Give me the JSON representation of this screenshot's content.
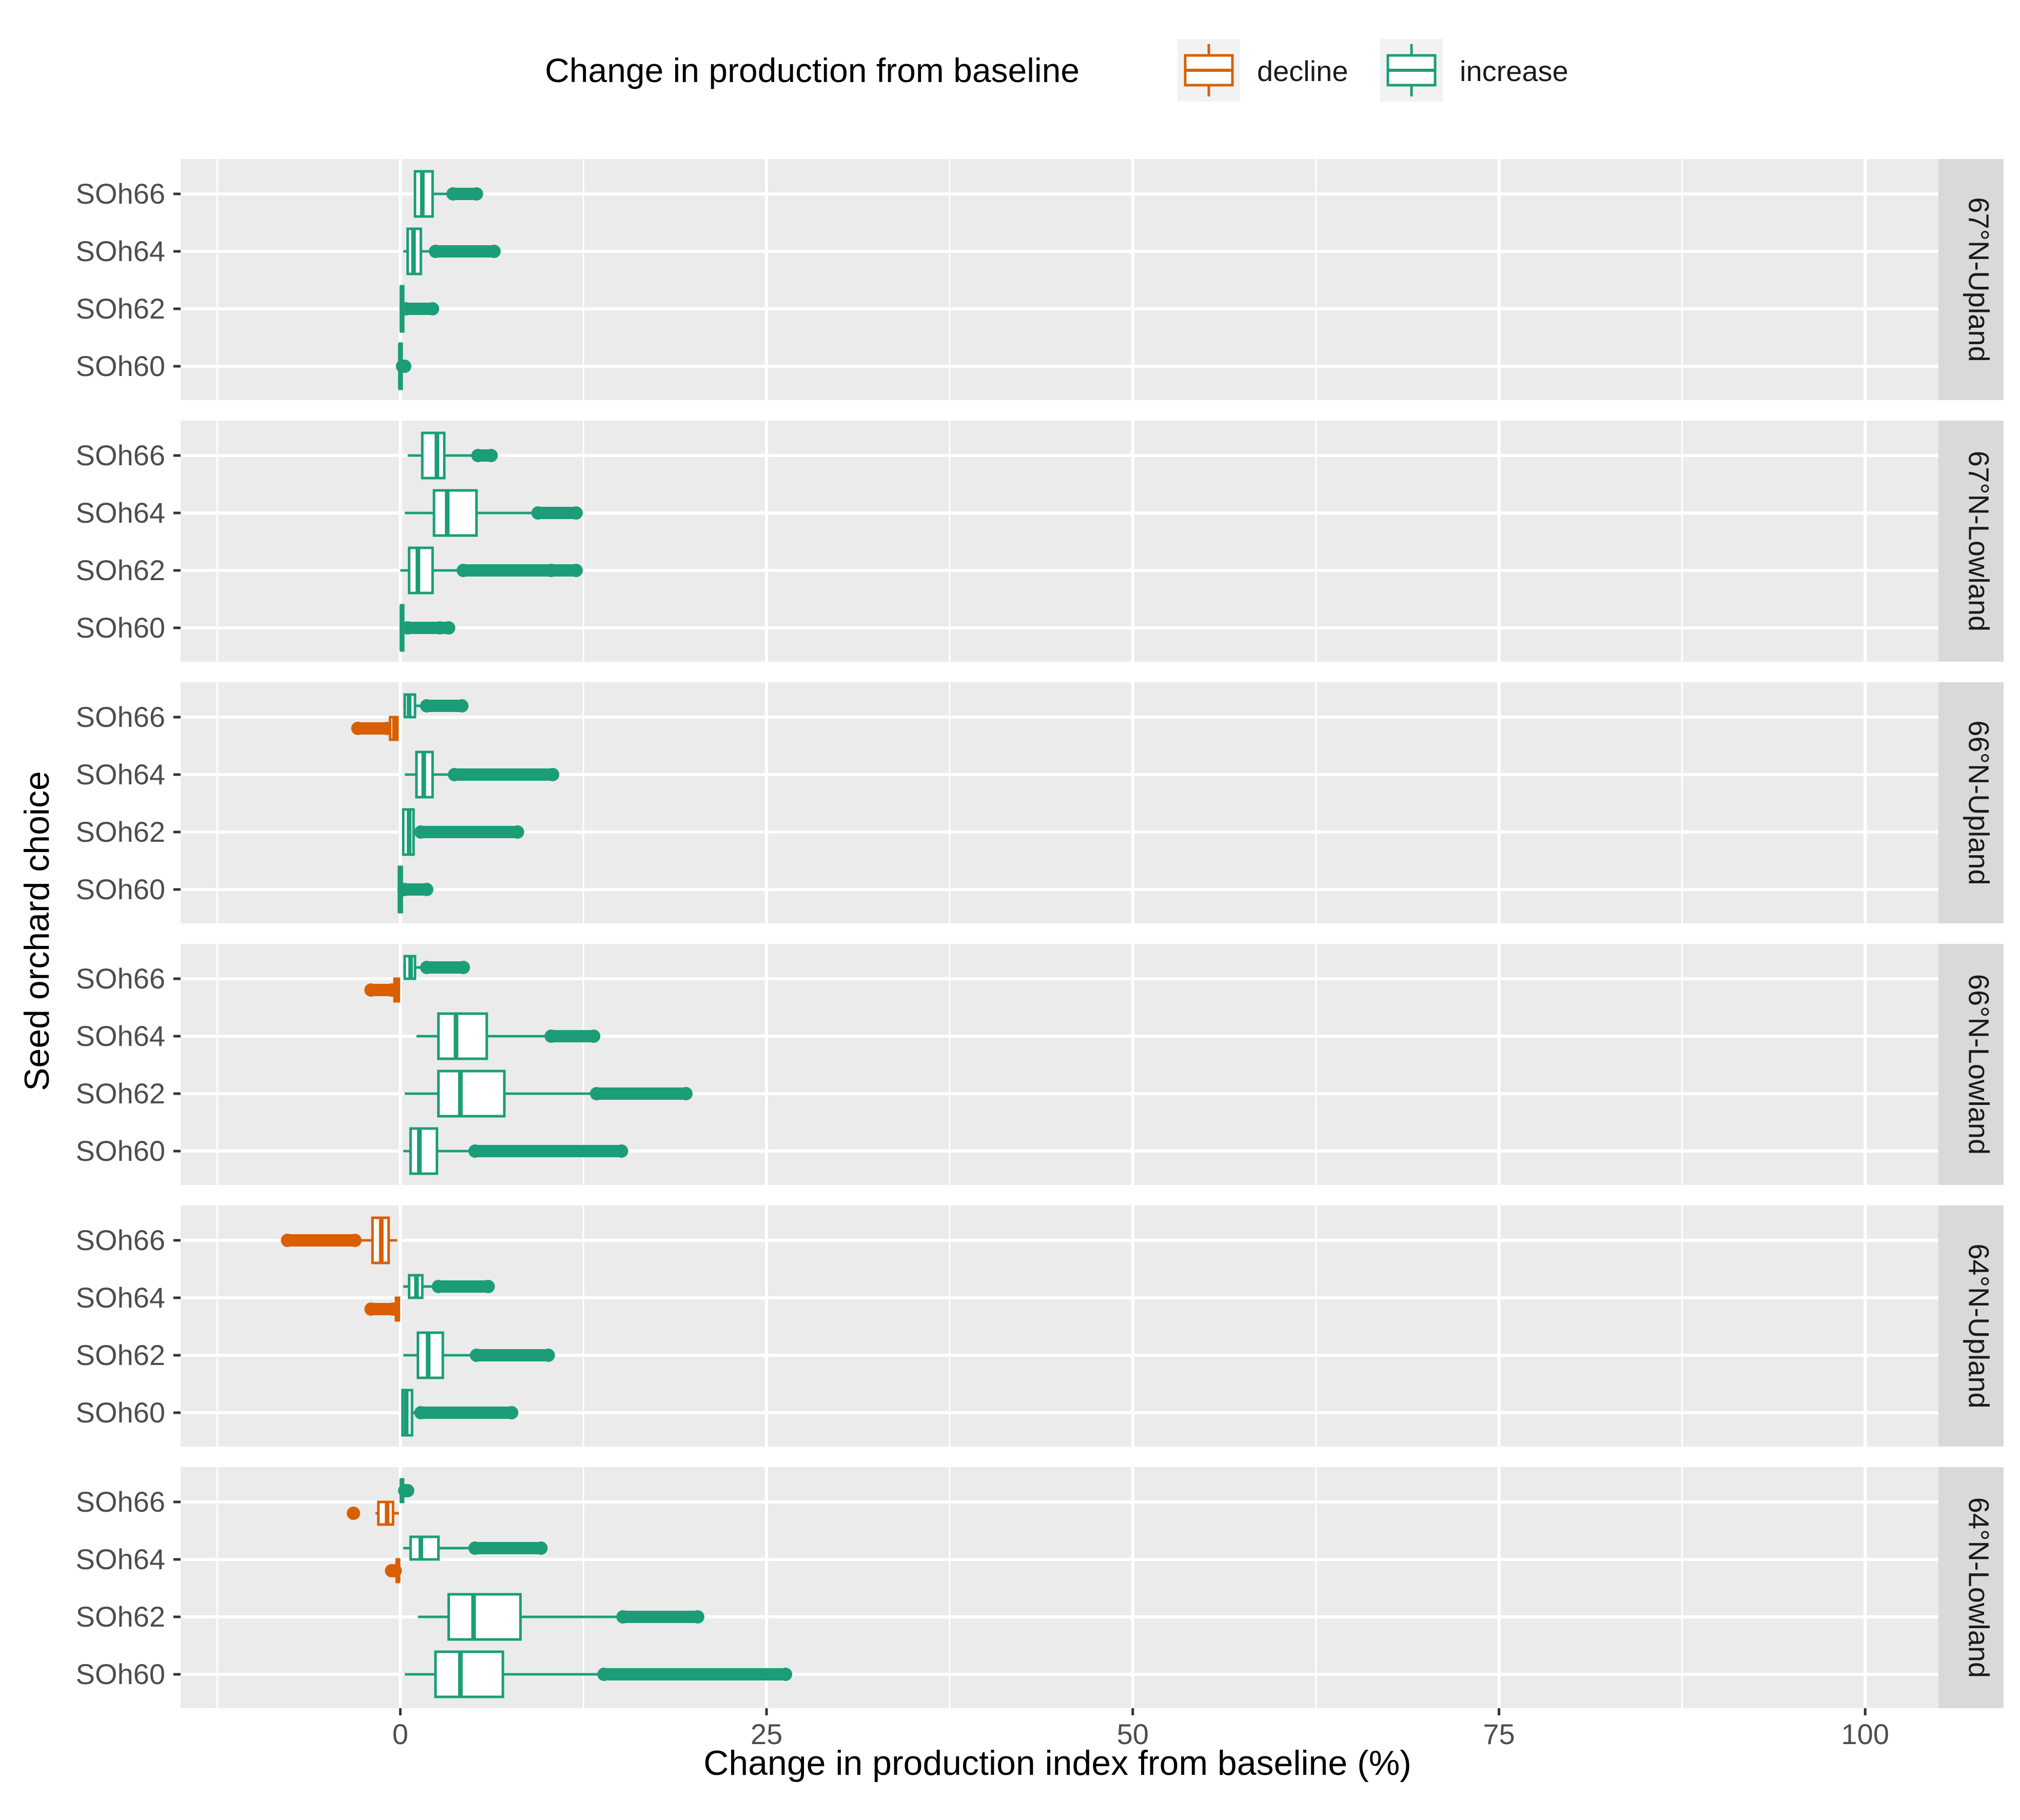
{
  "chart_data": {
    "type": "boxplot",
    "xlabel": "Change in production index from baseline (%)",
    "ylabel": "Seed orchard choice",
    "xlim": [
      -15,
      105
    ],
    "x_ticks": [
      0,
      25,
      50,
      75,
      100
    ],
    "grid": true,
    "legend": {
      "title": "Change in production from baseline",
      "position": "top",
      "entries": [
        {
          "label": "decline",
          "color": "#D95F02"
        },
        {
          "label": "increase",
          "color": "#1B9E77"
        }
      ]
    },
    "categories": [
      "SOh66",
      "SOh64",
      "SOh62",
      "SOh60"
    ],
    "panels": [
      {
        "facet": "67°N-Upland",
        "boxes": [
          {
            "category": "SOh66",
            "group": "increase",
            "whisker_low": 1.0,
            "q1": 1.0,
            "median": 1.5,
            "q3": 2.2,
            "whisker_high": 3.5,
            "outliers": [
              3.6,
              5.2
            ]
          },
          {
            "category": "SOh64",
            "group": "increase",
            "whisker_low": 0.2,
            "q1": 0.5,
            "median": 0.9,
            "q3": 1.4,
            "whisker_high": 2.3,
            "outliers": [
              2.4,
              6.4
            ]
          },
          {
            "category": "SOh62",
            "group": "increase",
            "whisker_low": 0.0,
            "q1": 0.05,
            "median": 0.1,
            "q3": 0.2,
            "whisker_high": 0.3,
            "outliers": [
              0.4,
              2.2
            ]
          },
          {
            "category": "SOh60",
            "group": "increase",
            "whisker_low": -0.1,
            "q1": -0.05,
            "median": 0.0,
            "q3": 0.05,
            "whisker_high": 0.1,
            "outliers": [
              0.15,
              0.3
            ]
          }
        ]
      },
      {
        "facet": "67°N-Lowland",
        "boxes": [
          {
            "category": "SOh66",
            "group": "increase",
            "whisker_low": 0.5,
            "q1": 1.5,
            "median": 2.5,
            "q3": 3.0,
            "whisker_high": 5.2,
            "outliers": [
              5.3,
              6.2
            ]
          },
          {
            "category": "SOh64",
            "group": "increase",
            "whisker_low": 0.3,
            "q1": 2.3,
            "median": 3.2,
            "q3": 5.2,
            "whisker_high": 9.3,
            "outliers": [
              9.4,
              12.0
            ]
          },
          {
            "category": "SOh62",
            "group": "increase",
            "whisker_low": 0.0,
            "q1": 0.6,
            "median": 1.2,
            "q3": 2.2,
            "whisker_high": 4.2,
            "outliers": [
              4.3,
              10.3,
              12.0
            ]
          },
          {
            "category": "SOh60",
            "group": "increase",
            "whisker_low": 0.0,
            "q1": 0.05,
            "median": 0.1,
            "q3": 0.2,
            "whisker_high": 0.4,
            "outliers": [
              0.5,
              2.7,
              3.3
            ]
          }
        ]
      },
      {
        "facet": "66°N-Upland",
        "boxes": [
          {
            "category": "SOh66",
            "group": "increase",
            "whisker_low": 0.2,
            "q1": 0.3,
            "median": 0.6,
            "q3": 1.0,
            "whisker_high": 1.7,
            "outliers": [
              1.8,
              4.2
            ]
          },
          {
            "category": "SOh66",
            "group": "decline",
            "whisker_low": -0.8,
            "q1": -0.7,
            "median": -0.4,
            "q3": -0.2,
            "whisker_high": -0.1,
            "outliers": [
              -2.9,
              -0.9
            ]
          },
          {
            "category": "SOh64",
            "group": "increase",
            "whisker_low": 0.3,
            "q1": 1.1,
            "median": 1.6,
            "q3": 2.2,
            "whisker_high": 3.6,
            "outliers": [
              3.7,
              10.4
            ]
          },
          {
            "category": "SOh62",
            "group": "increase",
            "whisker_low": 0.1,
            "q1": 0.2,
            "median": 0.6,
            "q3": 0.9,
            "whisker_high": 1.3,
            "outliers": [
              1.4,
              8.0
            ]
          },
          {
            "category": "SOh60",
            "group": "increase",
            "whisker_low": -0.2,
            "q1": -0.1,
            "median": 0.0,
            "q3": 0.1,
            "whisker_high": 0.2,
            "outliers": [
              0.3,
              1.8
            ]
          }
        ]
      },
      {
        "facet": "66°N-Lowland",
        "boxes": [
          {
            "category": "SOh66",
            "group": "increase",
            "whisker_low": 0.2,
            "q1": 0.3,
            "median": 0.7,
            "q3": 1.0,
            "whisker_high": 1.7,
            "outliers": [
              1.8,
              4.3
            ]
          },
          {
            "category": "SOh66",
            "group": "decline",
            "whisker_low": -0.5,
            "q1": -0.4,
            "median": -0.25,
            "q3": -0.1,
            "whisker_high": -0.05,
            "outliers": [
              -2.0,
              -0.6
            ]
          },
          {
            "category": "SOh64",
            "group": "increase",
            "whisker_low": 1.1,
            "q1": 2.6,
            "median": 3.8,
            "q3": 5.9,
            "whisker_high": 10.2,
            "outliers": [
              10.3,
              13.2
            ]
          },
          {
            "category": "SOh62",
            "group": "increase",
            "whisker_low": 0.3,
            "q1": 2.6,
            "median": 4.1,
            "q3": 7.1,
            "whisker_high": 13.3,
            "outliers": [
              13.4,
              19.5
            ]
          },
          {
            "category": "SOh60",
            "group": "increase",
            "whisker_low": 0.2,
            "q1": 0.7,
            "median": 1.3,
            "q3": 2.5,
            "whisker_high": 5.0,
            "outliers": [
              5.1,
              15.1
            ]
          }
        ]
      },
      {
        "facet": "64°N-Upland",
        "boxes": [
          {
            "category": "SOh66",
            "group": "decline",
            "whisker_low": -3.0,
            "q1": -1.9,
            "median": -1.3,
            "q3": -0.8,
            "whisker_high": -0.2,
            "outliers": [
              -7.7,
              -3.1
            ]
          },
          {
            "category": "SOh64",
            "group": "increase",
            "whisker_low": 0.2,
            "q1": 0.6,
            "median": 1.1,
            "q3": 1.5,
            "whisker_high": 2.5,
            "outliers": [
              2.6,
              6.0
            ]
          },
          {
            "category": "SOh64",
            "group": "decline",
            "whisker_low": -0.4,
            "q1": -0.3,
            "median": -0.2,
            "q3": -0.1,
            "whisker_high": -0.05,
            "outliers": [
              -2.0,
              -0.5
            ]
          },
          {
            "category": "SOh62",
            "group": "increase",
            "whisker_low": 0.2,
            "q1": 1.2,
            "median": 1.9,
            "q3": 2.9,
            "whisker_high": 5.1,
            "outliers": [
              5.2,
              10.1
            ]
          },
          {
            "category": "SOh60",
            "group": "increase",
            "whisker_low": 0.1,
            "q1": 0.15,
            "median": 0.4,
            "q3": 0.8,
            "whisker_high": 1.3,
            "outliers": [
              1.4,
              7.6
            ]
          }
        ]
      },
      {
        "facet": "64°N-Lowland",
        "boxes": [
          {
            "category": "SOh66",
            "group": "increase",
            "whisker_low": 0.0,
            "q1": 0.05,
            "median": 0.1,
            "q3": 0.15,
            "whisker_high": 0.2,
            "outliers": [
              0.3,
              0.5
            ]
          },
          {
            "category": "SOh66",
            "group": "decline",
            "whisker_low": -1.7,
            "q1": -1.5,
            "median": -0.9,
            "q3": -0.5,
            "whisker_high": -0.1,
            "outliers": [
              -3.2
            ]
          },
          {
            "category": "SOh64",
            "group": "increase",
            "whisker_low": 0.2,
            "q1": 0.7,
            "median": 1.4,
            "q3": 2.6,
            "whisker_high": 5.0,
            "outliers": [
              5.1,
              9.6
            ]
          },
          {
            "category": "SOh64",
            "group": "decline",
            "whisker_low": -0.3,
            "q1": -0.25,
            "median": -0.15,
            "q3": -0.1,
            "whisker_high": -0.05,
            "outliers": [
              -0.6,
              -0.35
            ]
          },
          {
            "category": "SOh62",
            "group": "increase",
            "whisker_low": 1.2,
            "q1": 3.3,
            "median": 5.0,
            "q3": 8.2,
            "whisker_high": 15.1,
            "outliers": [
              15.2,
              20.3
            ]
          },
          {
            "category": "SOh60",
            "group": "increase",
            "whisker_low": 0.3,
            "q1": 2.4,
            "median": 4.1,
            "q3": 7.0,
            "whisker_high": 13.8,
            "outliers": [
              13.9,
              26.3
            ]
          }
        ]
      }
    ]
  }
}
